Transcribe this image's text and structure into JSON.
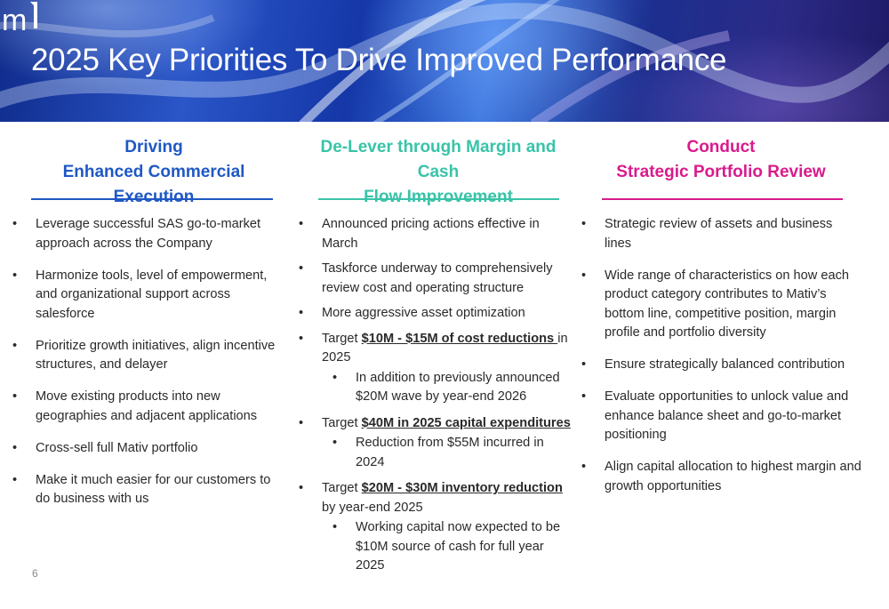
{
  "title": "2025 Key Priorities To Drive Improved Performance",
  "logo_text": "m",
  "colors": {
    "blue": "#1f58c4",
    "teal": "#39c3a8",
    "magenta": "#d81b8c"
  },
  "columns": [
    {
      "heading_line1": "Driving",
      "heading_line2": "Enhanced Commercial Execution",
      "bullets": [
        "Leverage successful SAS go-to-market approach across the Company",
        "Harmonize tools, level of empowerment, and organizational support across salesforce",
        "Prioritize growth initiatives, align incentive structures, and delayer",
        "Move existing products into new geographies and adjacent applications",
        "Cross-sell full Mativ portfolio",
        "Make it much easier for our customers to do business with us"
      ]
    },
    {
      "heading_line1": "De-Lever through Margin and Cash",
      "heading_line2": "Flow Improvement",
      "bullets": {
        "b1": "Announced pricing actions effective in March",
        "b2": "Taskforce underway to comprehensively review cost and operating structure",
        "b3": "More aggressive asset optimization",
        "b4_pre": "Target ",
        "b4_bold": "$10M - $15M of cost reductions ",
        "b4_post": "in 2025",
        "b4_sub": "In addition to previously announced $20M wave by year-end 2026",
        "b5_pre": "Target ",
        "b5_bold": "$40M in 2025 capital expenditures",
        "b5_sub": "Reduction from $55M incurred in 2024",
        "b6_pre": "Target ",
        "b6_bold": "$20M - $30M inventory reduction ",
        "b6_post": "by year-end 2025",
        "b6_sub": "Working capital now expected to be $10M source of cash for full year 2025"
      }
    },
    {
      "heading_line1": "Conduct",
      "heading_line2": "Strategic Portfolio Review",
      "bullets": [
        "Strategic review of assets and business lines",
        "Wide range of characteristics on how each product category contributes to Mativ’s bottom line, competitive position, margin profile and portfolio diversity",
        "Ensure strategically balanced contribution",
        "Evaluate opportunities to unlock value and enhance balance sheet and go-to-market positioning",
        "Align capital allocation to highest margin and growth opportunities"
      ]
    }
  ],
  "page_number": "6"
}
